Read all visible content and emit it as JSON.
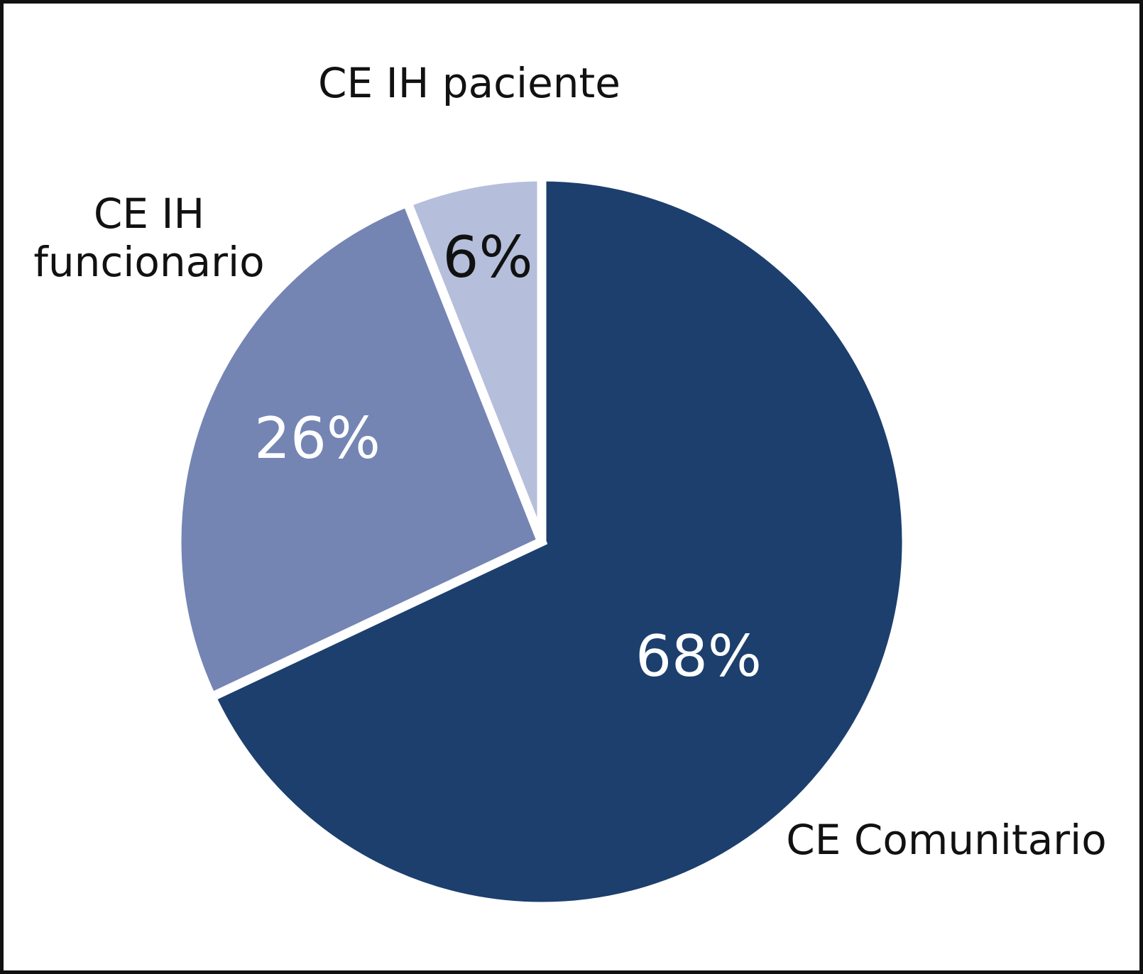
{
  "chart_data": {
    "type": "pie",
    "title": "",
    "legend_position": "none",
    "background": "#FFFFFF",
    "start_angle_deg": 0,
    "direction": "clockwise",
    "slice_border_color": "#FFFFFF",
    "slice_border_width": 13,
    "frame_color": "#111111",
    "label_color": "#111111",
    "slices": [
      {
        "label": "CE Comunitario",
        "value": 68,
        "pct_label": "68%",
        "color": "#1C3F6D",
        "pct_label_color": "#FFFFFF"
      },
      {
        "label": "CE IH funcionario",
        "value": 26,
        "pct_label": "26%",
        "color": "#7485B4",
        "pct_label_color": "#FFFFFF"
      },
      {
        "label": "CE IH paciente",
        "value": 6,
        "pct_label": "6%",
        "color": "#B5BFDC",
        "pct_label_color": "#111111"
      }
    ]
  }
}
